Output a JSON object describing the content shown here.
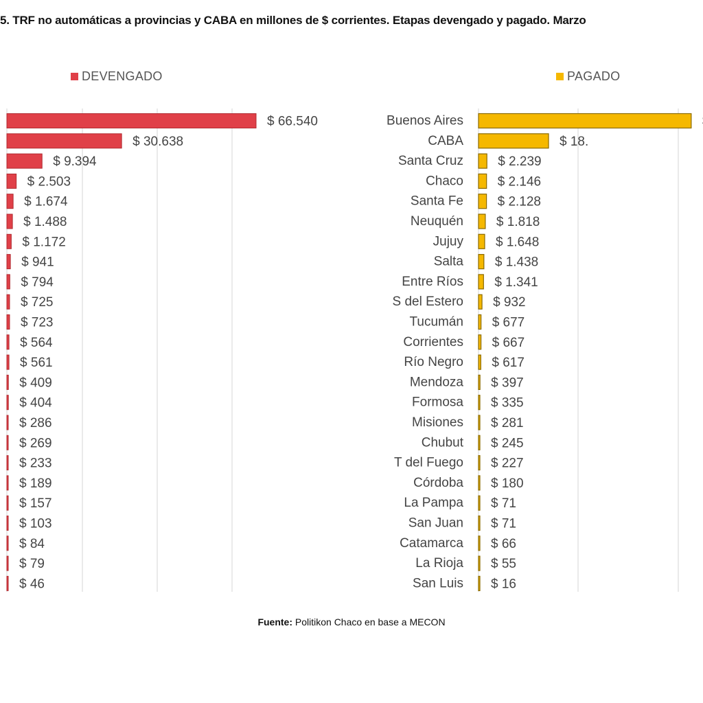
{
  "title": "5. TRF no automáticas a provincias y CABA en millones de $ corrientes. Etapas devengado y pagado. Marzo",
  "source": {
    "prefix": "Fuente:",
    "text": " Politikon Chaco en base a MECON"
  },
  "colors": {
    "devengado": "#e04048",
    "pagado": "#f5b800",
    "grid": "#d4d4d4",
    "text": "#444444"
  },
  "chart_data": [
    {
      "type": "bar",
      "orientation": "horizontal",
      "legend": "DEVENGADO",
      "categories": [
        "Buenos Aires",
        "CABA",
        "Santa Cruz",
        "Chaco",
        "Santa Fe",
        "Neuquén",
        "Jujuy",
        "Salta",
        "Entre Ríos",
        "S del Estero",
        "Tucumán",
        "Corrientes",
        "Río Negro",
        "Mendoza",
        "Formosa",
        "Misiones",
        "Chubut",
        "T del Fuego",
        "Córdoba",
        "La Pampa",
        "San Juan",
        "Catamarca",
        "La Rioja",
        "San Luis"
      ],
      "values": [
        66540,
        30638,
        9394,
        2503,
        1674,
        1488,
        1172,
        941,
        794,
        725,
        723,
        564,
        561,
        409,
        404,
        286,
        269,
        233,
        189,
        157,
        103,
        84,
        79,
        46
      ],
      "labels": [
        "$ 66.540",
        "$ 30.638",
        "$ 9.394",
        "$ 2.503",
        "$ 1.674",
        "$ 1.488",
        "$ 1.172",
        "$ 941",
        "$ 794",
        "$ 725",
        "$ 723",
        "$ 564",
        "$ 561",
        "$ 409",
        "$ 404",
        "$ 286",
        "$ 269",
        "$ 233",
        "$ 189",
        "$ 157",
        "$ 103",
        "$ 84",
        "$ 79",
        "$ 46"
      ]
    },
    {
      "type": "bar",
      "orientation": "horizontal",
      "legend": "PAGADO",
      "categories": [
        "Buenos Aires",
        "CABA",
        "Santa Cruz",
        "Chaco",
        "Santa Fe",
        "Neuquén",
        "Jujuy",
        "Salta",
        "Entre Ríos",
        "S del Estero",
        "Tucumán",
        "Corrientes",
        "Río Negro",
        "Mendoza",
        "Formosa",
        "Misiones",
        "Chubut",
        "T del Fuego",
        "Córdoba",
        "La Pampa",
        "San Juan",
        "Catamarca",
        "La Rioja",
        "San Luis"
      ],
      "values": [
        56800,
        18700,
        2239,
        2146,
        2128,
        1818,
        1648,
        1438,
        1341,
        932,
        677,
        667,
        617,
        397,
        335,
        281,
        245,
        227,
        180,
        71,
        71,
        66,
        55,
        16
      ],
      "labels": [
        "$",
        "$ 18.",
        "$ 2.239",
        "$ 2.146",
        "$ 2.128",
        "$ 1.818",
        "$ 1.648",
        "$ 1.438",
        "$ 1.341",
        "$ 932",
        "$ 677",
        "$ 667",
        "$ 617",
        "$ 397",
        "$ 335",
        "$ 281",
        "$ 245",
        "$ 227",
        "$ 180",
        "$ 71",
        "$ 71",
        "$ 66",
        "$ 55",
        "$ 16"
      ]
    }
  ]
}
